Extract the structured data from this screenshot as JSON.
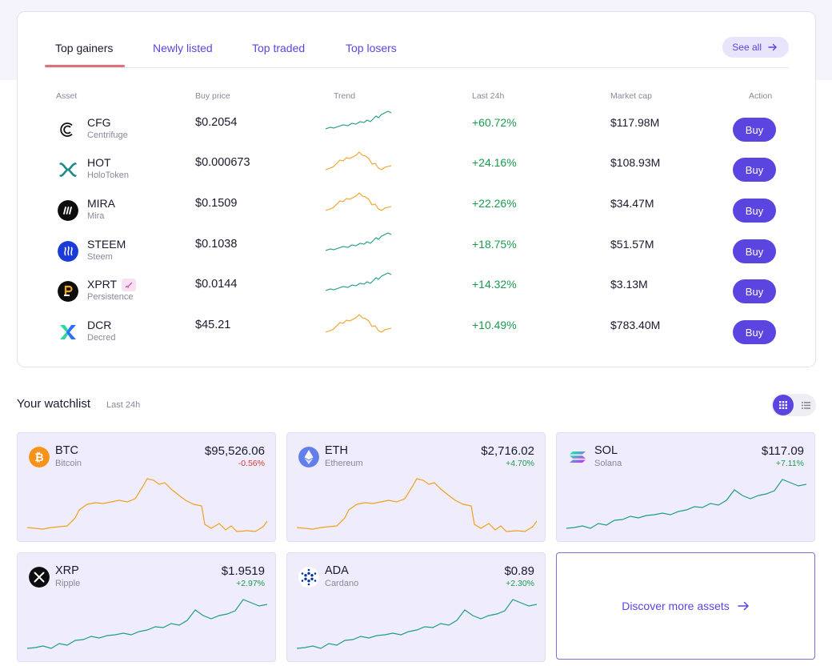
{
  "tabs": [
    {
      "label": "Top gainers",
      "active": true
    },
    {
      "label": "Newly listed",
      "active": false
    },
    {
      "label": "Top traded",
      "active": false
    },
    {
      "label": "Top losers",
      "active": false
    }
  ],
  "see_all_label": "See all",
  "columns": {
    "asset": "Asset",
    "buy_price": "Buy price",
    "trend": "Trend",
    "last24": "Last 24h",
    "market_cap": "Market cap",
    "action": "Action"
  },
  "colors": {
    "accent": "#5b45e0",
    "positive": "#1a9a4e",
    "negative": "#d63a3a",
    "trend_green": "#1e9e84",
    "trend_orange": "#f0a020"
  },
  "gainers": [
    {
      "symbol": "CFG",
      "name": "Centrifuge",
      "price": "$0.2054",
      "change": "+60.72%",
      "market_cap": "$117.98M",
      "buy_label": "Buy",
      "trend_color": "green",
      "icon": "centrifuge-icon"
    },
    {
      "symbol": "HOT",
      "name": "HoloToken",
      "price": "$0.000673",
      "change": "+24.16%",
      "market_cap": "$108.93M",
      "buy_label": "Buy",
      "trend_color": "orange",
      "icon": "holo-icon"
    },
    {
      "symbol": "MIRA",
      "name": "Mira",
      "price": "$0.1509",
      "change": "+22.26%",
      "market_cap": "$34.47M",
      "buy_label": "Buy",
      "trend_color": "orange",
      "icon": "mira-icon"
    },
    {
      "symbol": "STEEM",
      "name": "Steem",
      "price": "$0.1038",
      "change": "+18.75%",
      "market_cap": "$51.57M",
      "buy_label": "Buy",
      "trend_color": "green",
      "icon": "steem-icon"
    },
    {
      "symbol": "XPRT",
      "name": "Persistence",
      "price": "$0.0144",
      "change": "+14.32%",
      "market_cap": "$3.13M",
      "buy_label": "Buy",
      "trend_color": "green",
      "icon": "persistence-icon",
      "badge_icon": "rocket-icon"
    },
    {
      "symbol": "DCR",
      "name": "Decred",
      "price": "$45.21",
      "change": "+10.49%",
      "market_cap": "$783.40M",
      "buy_label": "Buy",
      "trend_color": "orange",
      "icon": "decred-icon"
    }
  ],
  "watchlist": {
    "title": "Your watchlist",
    "subtitle": "Last 24h",
    "items": [
      {
        "symbol": "BTC",
        "name": "Bitcoin",
        "price": "$95,526.06",
        "change": "-0.56%",
        "direction": "down",
        "icon": "bitcoin-icon"
      },
      {
        "symbol": "ETH",
        "name": "Ethereum",
        "price": "$2,716.02",
        "change": "+4.70%",
        "direction": "up",
        "icon": "ethereum-icon"
      },
      {
        "symbol": "SOL",
        "name": "Solana",
        "price": "$117.09",
        "change": "+7.11%",
        "direction": "up",
        "icon": "solana-icon"
      },
      {
        "symbol": "XRP",
        "name": "Ripple",
        "price": "$1.9519",
        "change": "+2.97%",
        "direction": "up",
        "icon": "ripple-icon"
      },
      {
        "symbol": "ADA",
        "name": "Cardano",
        "price": "$0.89",
        "change": "+2.30%",
        "direction": "up",
        "icon": "cardano-icon"
      }
    ],
    "discover_label": "Discover more assets"
  }
}
